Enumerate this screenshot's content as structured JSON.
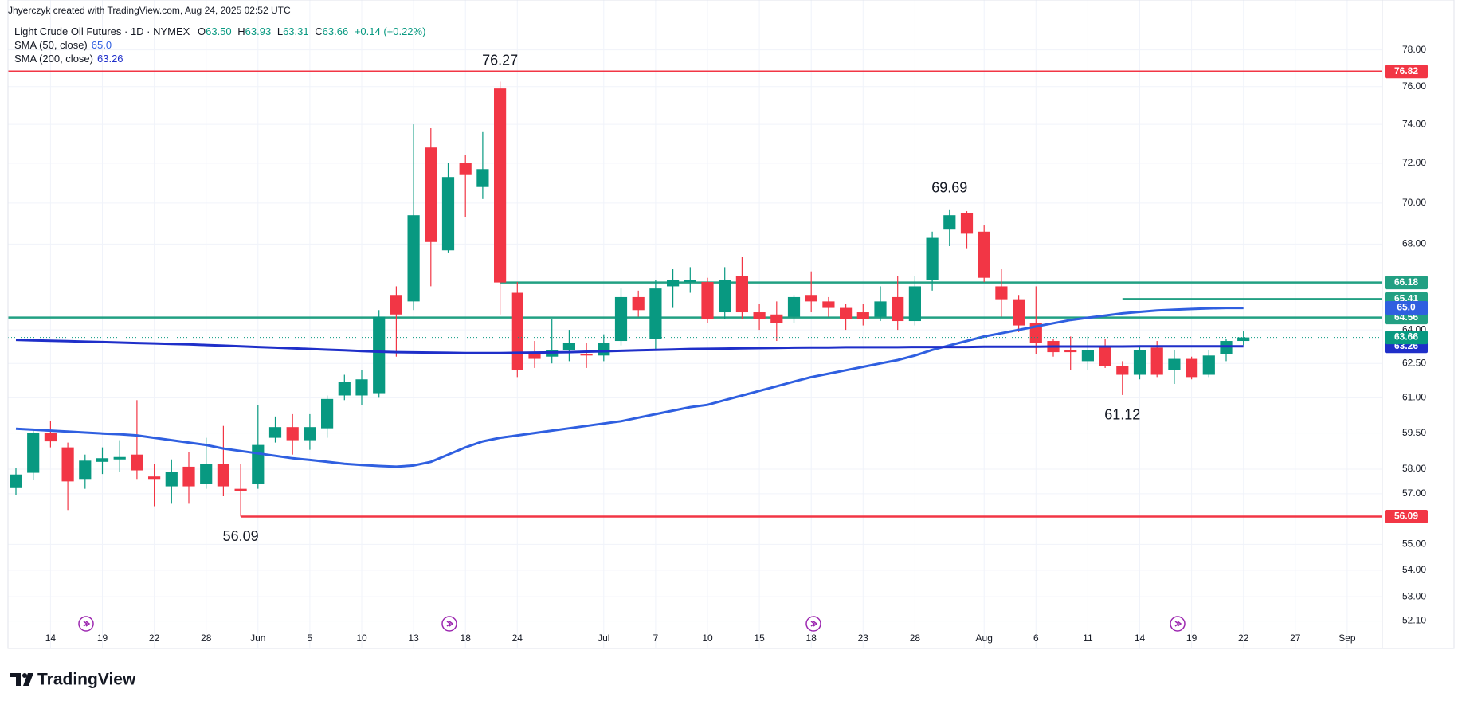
{
  "header": {
    "credit": "Jhyerczyk created with TradingView.com, Aug 24, 2025 02:52 UTC",
    "ohlc": [
      {
        "key": "O",
        "value": "63.50"
      },
      {
        "key": "H",
        "value": "63.93"
      },
      {
        "key": "L",
        "value": "63.31"
      },
      {
        "key": "C",
        "value": "63.66"
      }
    ],
    "change": "+0.14 (+0.22%)"
  },
  "footer": {
    "brand": "TradingView"
  },
  "chart_data": {
    "type": "candlestick",
    "title": "Light Crude Oil Futures · 1D · NYMEX",
    "up_color": "#089981",
    "down_color": "#f23645",
    "log_scale": true,
    "grid": true,
    "ylim": [
      51.1,
      80.8
    ],
    "yticks": [
      {
        "value": 78,
        "label": "78.00"
      },
      {
        "value": 76,
        "label": "76.00"
      },
      {
        "value": 74,
        "label": "74.00"
      },
      {
        "value": 72,
        "label": "72.00"
      },
      {
        "value": 70,
        "label": "70.00"
      },
      {
        "value": 68,
        "label": "68.00"
      },
      {
        "value": 64,
        "label": "64.00"
      },
      {
        "value": 62.5,
        "label": "62.50"
      },
      {
        "value": 61,
        "label": "61.00"
      },
      {
        "value": 59.5,
        "label": "59.50"
      },
      {
        "value": 58,
        "label": "58.00"
      },
      {
        "value": 57,
        "label": "57.00"
      },
      {
        "value": 55,
        "label": "55.00"
      },
      {
        "value": 54,
        "label": "54.00"
      },
      {
        "value": 53,
        "label": "53.00"
      },
      {
        "value": 52.1,
        "label": "52.10"
      }
    ],
    "categories": [
      null,
      null,
      "14",
      null,
      null,
      "19",
      null,
      null,
      "22",
      null,
      null,
      "28",
      null,
      null,
      "Jun",
      null,
      null,
      "5",
      null,
      null,
      "10",
      null,
      null,
      "13",
      null,
      null,
      "18",
      null,
      null,
      "24",
      null,
      null,
      null,
      null,
      "Jul",
      null,
      null,
      "7",
      null,
      null,
      "10",
      null,
      null,
      "15",
      null,
      null,
      "18",
      null,
      null,
      "23",
      null,
      null,
      "28",
      null,
      null,
      null,
      "Aug",
      null,
      null,
      "6",
      null,
      null,
      "11",
      null,
      null,
      "14",
      null,
      null,
      "19",
      null,
      null,
      "22",
      null,
      null,
      "27",
      null,
      null,
      "Sep"
    ],
    "open": [
      57.26,
      57.85,
      59.5,
      58.9,
      57.6,
      58.3,
      58.4,
      58.6,
      57.7,
      57.3,
      58.1,
      57.4,
      58.2,
      57.2,
      57.4,
      59.3,
      59.75,
      59.2,
      59.7,
      61.1,
      61.1,
      61.2,
      65.6,
      65.3,
      72.8,
      67.7,
      72.0,
      70.8,
      75.9,
      65.7,
      63.0,
      62.8,
      63.1,
      62.9,
      62.85,
      63.5,
      65.5,
      63.6,
      66.0,
      66.2,
      66.2,
      64.8,
      66.5,
      64.8,
      64.7,
      64.6,
      65.6,
      65.3,
      65.0,
      64.8,
      64.6,
      65.5,
      64.4,
      66.3,
      68.7,
      69.5,
      68.6,
      66.0,
      65.4,
      64.3,
      63.5,
      63.1,
      62.6,
      63.2,
      62.4,
      62.0,
      63.2,
      62.2,
      62.7,
      62.0,
      62.9,
      63.5,
      null,
      null,
      null,
      null,
      null,
      null
    ],
    "high": [
      58.05,
      59.6,
      60.0,
      59.1,
      58.6,
      58.9,
      59.2,
      60.9,
      58.2,
      58.4,
      58.7,
      59.3,
      59.8,
      58.2,
      60.7,
      60.2,
      60.3,
      60.3,
      61.1,
      62.0,
      62.2,
      64.9,
      66.0,
      74.0,
      73.8,
      72.0,
      72.4,
      73.6,
      76.27,
      66.2,
      63.5,
      64.5,
      64.0,
      63.4,
      63.8,
      65.9,
      65.8,
      66.3,
      66.8,
      66.9,
      66.4,
      66.9,
      67.4,
      65.2,
      65.3,
      65.6,
      66.7,
      65.5,
      65.2,
      65.2,
      66.0,
      66.5,
      66.5,
      68.6,
      69.69,
      69.6,
      68.9,
      66.8,
      65.6,
      66.0,
      63.6,
      63.7,
      63.7,
      63.6,
      62.6,
      63.3,
      63.5,
      63.1,
      62.8,
      63.1,
      63.6,
      63.93,
      null,
      null,
      null,
      null,
      null,
      null
    ],
    "low": [
      56.95,
      57.55,
      58.9,
      56.35,
      57.2,
      57.8,
      57.9,
      57.6,
      56.5,
      56.6,
      56.6,
      57.2,
      56.9,
      56.09,
      57.2,
      59.1,
      58.6,
      58.8,
      59.3,
      60.9,
      60.7,
      61.0,
      62.8,
      64.9,
      66.0,
      67.6,
      69.3,
      70.2,
      64.7,
      61.9,
      62.3,
      62.5,
      62.6,
      62.3,
      62.6,
      63.3,
      64.6,
      63.1,
      65.0,
      65.7,
      64.3,
      64.5,
      64.5,
      64.0,
      63.5,
      64.3,
      64.8,
      64.6,
      64.0,
      64.2,
      64.4,
      64.0,
      64.2,
      65.8,
      67.9,
      67.8,
      66.2,
      64.6,
      63.9,
      62.9,
      62.8,
      62.2,
      62.2,
      62.3,
      61.12,
      61.8,
      61.9,
      61.6,
      61.8,
      61.9,
      62.6,
      63.31,
      null,
      null,
      null,
      null,
      null,
      null
    ],
    "close": [
      57.78,
      59.5,
      59.15,
      57.5,
      58.35,
      58.45,
      58.5,
      57.95,
      57.6,
      57.9,
      57.3,
      58.2,
      57.3,
      57.1,
      59.0,
      59.75,
      59.2,
      59.75,
      60.95,
      61.7,
      61.8,
      64.6,
      64.7,
      69.4,
      68.1,
      71.3,
      71.4,
      71.7,
      66.18,
      62.2,
      62.7,
      63.1,
      63.4,
      62.85,
      63.4,
      65.5,
      64.9,
      65.9,
      66.3,
      66.3,
      64.5,
      66.3,
      64.8,
      64.5,
      64.3,
      65.5,
      65.3,
      65.0,
      64.5,
      64.5,
      65.3,
      64.4,
      66.0,
      68.3,
      69.4,
      68.5,
      66.4,
      65.4,
      64.2,
      63.4,
      63.0,
      63.0,
      63.1,
      62.4,
      62.0,
      63.1,
      62.0,
      62.7,
      61.9,
      62.85,
      63.5,
      63.66,
      null,
      null,
      null,
      null,
      null,
      null
    ],
    "series": [
      {
        "name": "SMA (50, close)",
        "color": "#2f5fe0",
        "last_label": "65.0",
        "values": [
          59.68,
          59.64,
          59.6,
          59.56,
          59.52,
          59.48,
          59.45,
          59.4,
          59.3,
          59.2,
          59.1,
          59.0,
          58.85,
          58.75,
          58.65,
          58.55,
          58.45,
          58.38,
          58.3,
          58.22,
          58.17,
          58.13,
          58.1,
          58.15,
          58.3,
          58.6,
          58.9,
          59.15,
          59.3,
          59.4,
          59.5,
          59.6,
          59.7,
          59.8,
          59.9,
          60.0,
          60.15,
          60.3,
          60.45,
          60.6,
          60.7,
          60.9,
          61.1,
          61.3,
          61.5,
          61.7,
          61.9,
          62.05,
          62.2,
          62.35,
          62.5,
          62.65,
          62.85,
          63.1,
          63.3,
          63.5,
          63.7,
          63.85,
          64.0,
          64.15,
          64.3,
          64.45,
          64.55,
          64.65,
          64.75,
          64.82,
          64.88,
          64.92,
          64.95,
          64.98,
          65.0,
          65.0,
          null,
          null,
          null,
          null,
          null,
          null
        ]
      },
      {
        "name": "SMA (200, close)",
        "color": "#1f2fc9",
        "last_label": "63.26",
        "values": [
          63.55,
          63.53,
          63.51,
          63.49,
          63.47,
          63.45,
          63.43,
          63.41,
          63.39,
          63.37,
          63.35,
          63.32,
          63.29,
          63.26,
          63.23,
          63.2,
          63.17,
          63.14,
          63.11,
          63.08,
          63.05,
          63.02,
          63.0,
          62.99,
          62.98,
          62.97,
          62.96,
          62.96,
          62.96,
          62.97,
          62.98,
          62.99,
          63.0,
          63.02,
          63.04,
          63.06,
          63.08,
          63.1,
          63.12,
          63.14,
          63.15,
          63.16,
          63.17,
          63.18,
          63.19,
          63.2,
          63.21,
          63.21,
          63.22,
          63.22,
          63.22,
          63.22,
          63.23,
          63.23,
          63.23,
          63.23,
          63.24,
          63.24,
          63.24,
          63.24,
          63.25,
          63.25,
          63.25,
          63.25,
          63.25,
          63.26,
          63.26,
          63.26,
          63.26,
          63.26,
          63.26,
          63.26,
          null,
          null,
          null,
          null,
          null,
          null
        ]
      }
    ],
    "levels": [
      {
        "value": 76.82,
        "color": "#f23645"
      },
      {
        "value": 66.18,
        "color": "#22a083"
      },
      {
        "value": 65.41,
        "color": "#22a083"
      },
      {
        "value": 64.56,
        "color": "#22a083"
      },
      {
        "value": 56.09,
        "color": "#f23645"
      }
    ],
    "annotations": [
      76.27,
      69.69,
      61.12,
      56.09
    ]
  }
}
